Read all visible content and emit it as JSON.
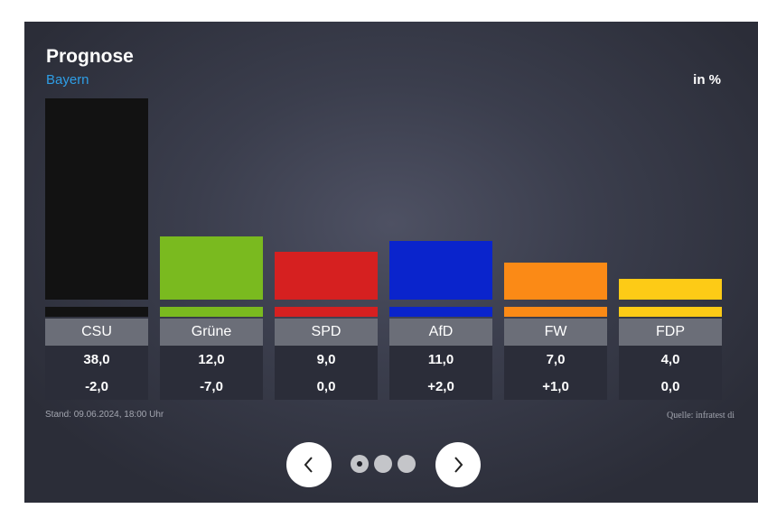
{
  "header": {
    "title": "Prognose",
    "subtitle": "Bayern",
    "unit": "in %"
  },
  "chart_data": {
    "type": "bar",
    "categories": [
      "CSU",
      "Grüne",
      "SPD",
      "AfD",
      "FW",
      "FDP"
    ],
    "values": [
      38.0,
      12.0,
      9.0,
      11.0,
      7.0,
      4.0
    ],
    "value_labels": [
      "38,0",
      "12,0",
      "9,0",
      "11,0",
      "7,0",
      "4,0"
    ],
    "change_labels": [
      "-2,0",
      "-7,0",
      "0,0",
      "+2,0",
      "+1,0",
      "0,0"
    ],
    "colors": [
      "#121212",
      "#7aba1f",
      "#d62020",
      "#0a24cc",
      "#fb8a16",
      "#fdcb16"
    ],
    "ylim": [
      0,
      38
    ]
  },
  "footer": {
    "stand": "Stand: 09.06.2024, 18:00 Uhr",
    "source": "Quelle: infratest di"
  },
  "nav": {
    "prev_icon": "chevron-left-icon",
    "next_icon": "chevron-right-icon",
    "dots": 3,
    "active_dot": 0
  }
}
